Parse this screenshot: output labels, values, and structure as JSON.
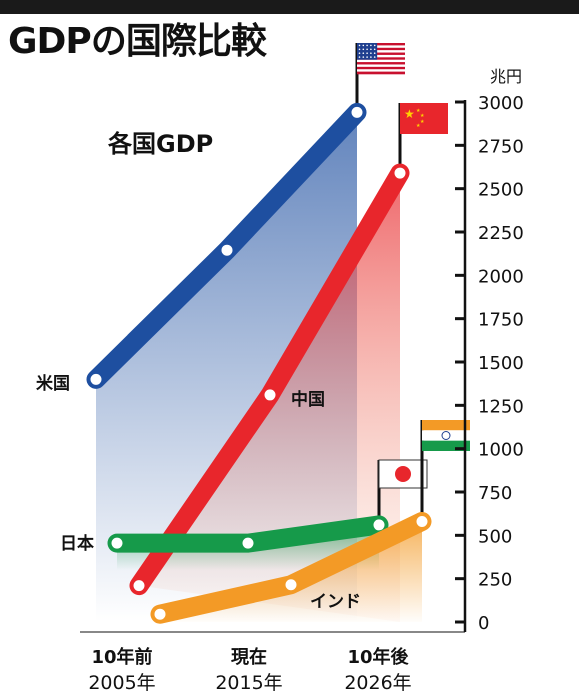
{
  "title": "GDPの国際比較",
  "chart_data": {
    "type": "line",
    "title": "各国GDP",
    "unit": "兆円",
    "ylim": [
      0,
      3000
    ],
    "yticks": [
      "0",
      "250",
      "500",
      "750",
      "1000",
      "1250",
      "1500",
      "1750",
      "2000",
      "2250",
      "2500",
      "2750",
      "3000"
    ],
    "xticks": [
      {
        "label": "10年前",
        "year": "2005年"
      },
      {
        "label": "現在",
        "year": "2015年"
      },
      {
        "label": "10年後",
        "year": "2026年"
      }
    ],
    "series": [
      {
        "name": "米国",
        "color": "#1e4fa0",
        "flag": "us-flag",
        "x": [
          2005,
          2015,
          2026
        ],
        "values": [
          1400,
          2145,
          2940
        ]
      },
      {
        "name": "中国",
        "color": "#e8262c",
        "flag": "china-flag",
        "x": [
          2005,
          2015,
          2026
        ],
        "values": [
          210,
          1310,
          2590
        ]
      },
      {
        "name": "日本",
        "color": "#169a4a",
        "flag": "japan-flag",
        "x": [
          2005,
          2015,
          2026
        ],
        "values": [
          455,
          455,
          560
        ]
      },
      {
        "name": "インド",
        "color": "#f39a26",
        "flag": "india-flag",
        "x": [
          2005,
          2015,
          2026
        ],
        "values": [
          45,
          215,
          580
        ]
      }
    ]
  }
}
